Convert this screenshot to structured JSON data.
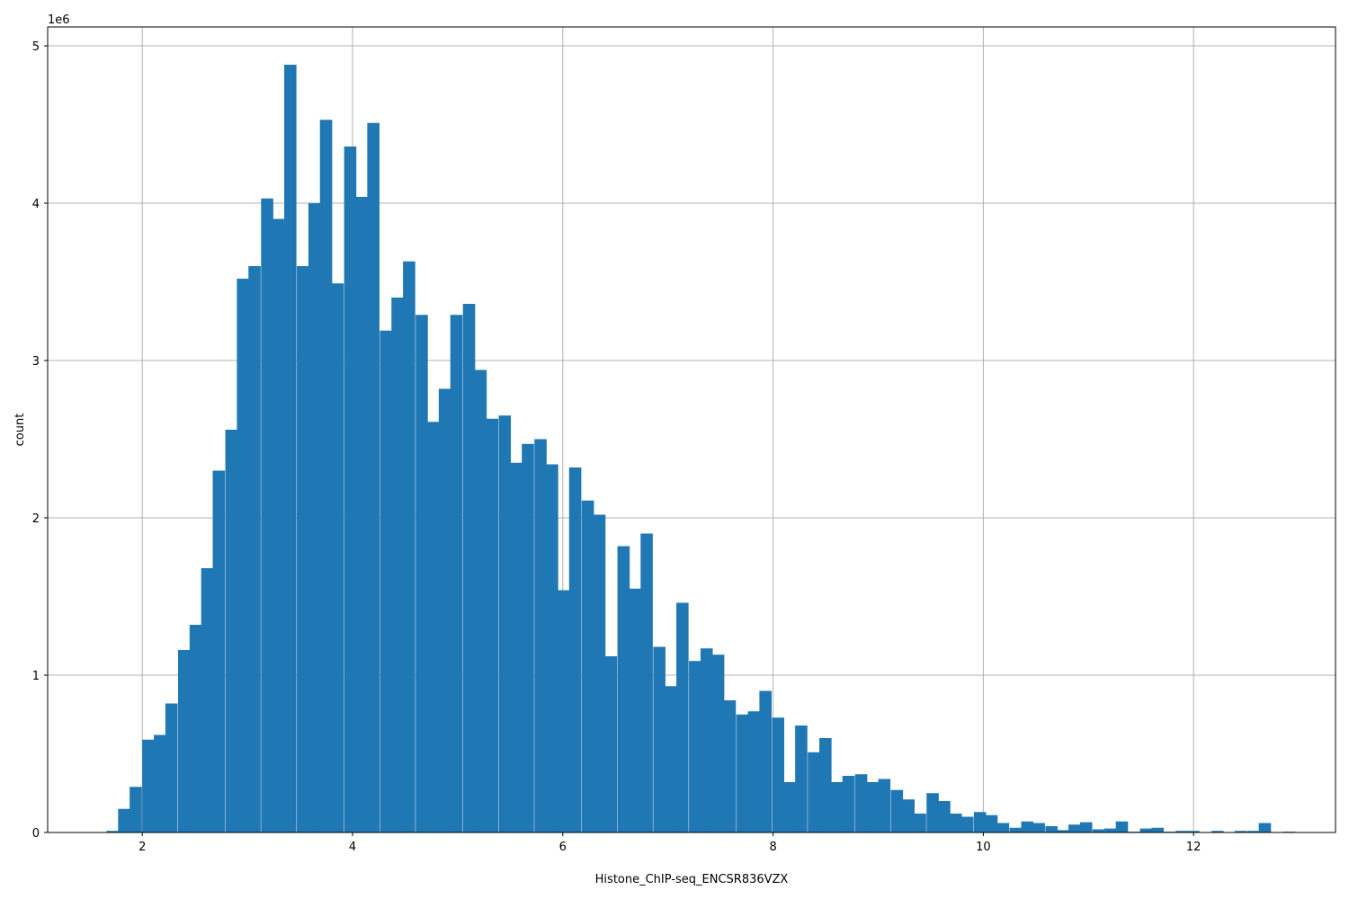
{
  "chart_data": {
    "type": "bar",
    "xlabel": "Histone_ChIP-seq_ENCSR836VZX",
    "ylabel": "count",
    "y_offset_label": "1e6",
    "y_scale": 1000000,
    "xlim": [
      1.1,
      13.35
    ],
    "ylim": [
      0,
      5.12
    ],
    "grid": true,
    "bar_color": "#1f77b4",
    "bin_width": 0.1128,
    "x_ticks": [
      2,
      4,
      6,
      8,
      10,
      12
    ],
    "x_tick_labels": [
      "2",
      "4",
      "6",
      "8",
      "10",
      "12"
    ],
    "y_ticks": [
      0,
      1,
      2,
      3,
      4,
      5
    ],
    "y_tick_labels": [
      "0",
      "1",
      "2",
      "3",
      "4",
      "5"
    ],
    "bins": [
      {
        "x": 1.66,
        "v": 0.01
      },
      {
        "x": 1.77,
        "v": 0.15
      },
      {
        "x": 1.88,
        "v": 0.29
      },
      {
        "x": 2.0,
        "v": 0.59
      },
      {
        "x": 2.11,
        "v": 0.62
      },
      {
        "x": 2.22,
        "v": 0.82
      },
      {
        "x": 2.34,
        "v": 1.16
      },
      {
        "x": 2.45,
        "v": 1.32
      },
      {
        "x": 2.56,
        "v": 1.68
      },
      {
        "x": 2.67,
        "v": 2.3
      },
      {
        "x": 2.79,
        "v": 2.56
      },
      {
        "x": 2.9,
        "v": 3.52
      },
      {
        "x": 3.01,
        "v": 3.6
      },
      {
        "x": 3.13,
        "v": 4.03
      },
      {
        "x": 3.24,
        "v": 3.9
      },
      {
        "x": 3.35,
        "v": 4.88
      },
      {
        "x": 3.47,
        "v": 3.6
      },
      {
        "x": 3.58,
        "v": 4.0
      },
      {
        "x": 3.69,
        "v": 4.53
      },
      {
        "x": 3.8,
        "v": 3.49
      },
      {
        "x": 3.92,
        "v": 4.36
      },
      {
        "x": 4.03,
        "v": 4.04
      },
      {
        "x": 4.14,
        "v": 4.51
      },
      {
        "x": 4.26,
        "v": 3.19
      },
      {
        "x": 4.37,
        "v": 3.4
      },
      {
        "x": 4.48,
        "v": 3.63
      },
      {
        "x": 4.6,
        "v": 3.29
      },
      {
        "x": 4.71,
        "v": 2.61
      },
      {
        "x": 4.82,
        "v": 2.82
      },
      {
        "x": 4.93,
        "v": 3.29
      },
      {
        "x": 5.05,
        "v": 3.36
      },
      {
        "x": 5.16,
        "v": 2.94
      },
      {
        "x": 5.27,
        "v": 2.63
      },
      {
        "x": 5.39,
        "v": 2.65
      },
      {
        "x": 5.5,
        "v": 2.35
      },
      {
        "x": 5.61,
        "v": 2.47
      },
      {
        "x": 5.73,
        "v": 2.5
      },
      {
        "x": 5.84,
        "v": 2.34
      },
      {
        "x": 5.95,
        "v": 1.54
      },
      {
        "x": 6.06,
        "v": 2.32
      },
      {
        "x": 6.18,
        "v": 2.11
      },
      {
        "x": 6.29,
        "v": 2.02
      },
      {
        "x": 6.4,
        "v": 1.12
      },
      {
        "x": 6.52,
        "v": 1.82
      },
      {
        "x": 6.63,
        "v": 1.55
      },
      {
        "x": 6.74,
        "v": 1.9
      },
      {
        "x": 6.86,
        "v": 1.18
      },
      {
        "x": 6.97,
        "v": 0.93
      },
      {
        "x": 7.08,
        "v": 1.46
      },
      {
        "x": 7.2,
        "v": 1.09
      },
      {
        "x": 7.31,
        "v": 1.17
      },
      {
        "x": 7.42,
        "v": 1.13
      },
      {
        "x": 7.53,
        "v": 0.84
      },
      {
        "x": 7.65,
        "v": 0.75
      },
      {
        "x": 7.76,
        "v": 0.77
      },
      {
        "x": 7.87,
        "v": 0.9
      },
      {
        "x": 7.99,
        "v": 0.73
      },
      {
        "x": 8.1,
        "v": 0.32
      },
      {
        "x": 8.21,
        "v": 0.68
      },
      {
        "x": 8.33,
        "v": 0.51
      },
      {
        "x": 8.44,
        "v": 0.6
      },
      {
        "x": 8.55,
        "v": 0.32
      },
      {
        "x": 8.66,
        "v": 0.36
      },
      {
        "x": 8.78,
        "v": 0.37
      },
      {
        "x": 8.89,
        "v": 0.32
      },
      {
        "x": 9.0,
        "v": 0.34
      },
      {
        "x": 9.12,
        "v": 0.27
      },
      {
        "x": 9.23,
        "v": 0.21
      },
      {
        "x": 9.34,
        "v": 0.12
      },
      {
        "x": 9.46,
        "v": 0.25
      },
      {
        "x": 9.57,
        "v": 0.2
      },
      {
        "x": 9.68,
        "v": 0.12
      },
      {
        "x": 9.79,
        "v": 0.1
      },
      {
        "x": 9.91,
        "v": 0.13
      },
      {
        "x": 10.02,
        "v": 0.11
      },
      {
        "x": 10.13,
        "v": 0.06
      },
      {
        "x": 10.25,
        "v": 0.03
      },
      {
        "x": 10.36,
        "v": 0.07
      },
      {
        "x": 10.47,
        "v": 0.06
      },
      {
        "x": 10.59,
        "v": 0.04
      },
      {
        "x": 10.7,
        "v": 0.015
      },
      {
        "x": 10.81,
        "v": 0.05
      },
      {
        "x": 10.92,
        "v": 0.065
      },
      {
        "x": 11.04,
        "v": 0.02
      },
      {
        "x": 11.15,
        "v": 0.025
      },
      {
        "x": 11.26,
        "v": 0.07
      },
      {
        "x": 11.38,
        "v": 0.005
      },
      {
        "x": 11.49,
        "v": 0.025
      },
      {
        "x": 11.6,
        "v": 0.03
      },
      {
        "x": 11.72,
        "v": 0.005
      },
      {
        "x": 11.83,
        "v": 0.01
      },
      {
        "x": 11.94,
        "v": 0.01
      },
      {
        "x": 12.05,
        "v": 0.0
      },
      {
        "x": 12.17,
        "v": 0.01
      },
      {
        "x": 12.28,
        "v": 0.0
      },
      {
        "x": 12.39,
        "v": 0.01
      },
      {
        "x": 12.51,
        "v": 0.01
      },
      {
        "x": 12.62,
        "v": 0.06
      },
      {
        "x": 12.73,
        "v": 0.0
      },
      {
        "x": 12.85,
        "v": 0.005
      }
    ]
  }
}
